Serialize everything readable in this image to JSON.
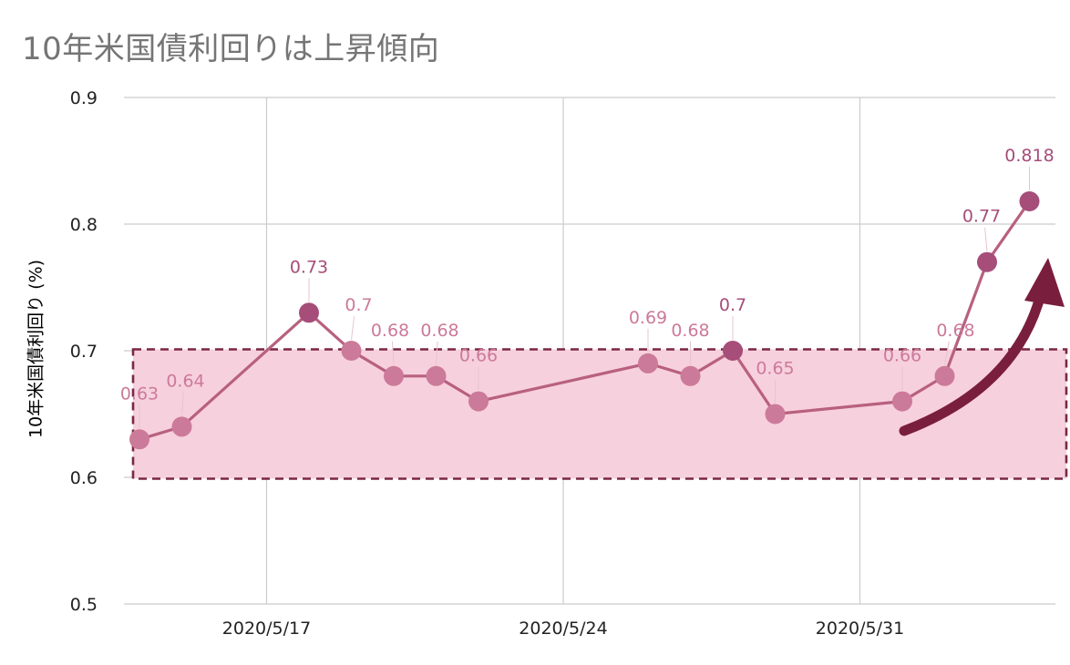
{
  "chart_data": {
    "type": "line",
    "title": "10年米国債利回りは上昇傾向",
    "xlabel": "",
    "ylabel": "10年米国債利回り (%)",
    "ylim": [
      0.5,
      0.9
    ],
    "yticks": [
      "0.5",
      "0.6",
      "0.7",
      "0.8",
      "0.9"
    ],
    "xticks": [
      {
        "label": "2020/5/17",
        "date": "2020-05-17"
      },
      {
        "label": "2020/5/24",
        "date": "2020-05-24"
      },
      {
        "label": "2020/5/31",
        "date": "2020-05-31"
      }
    ],
    "grid": true,
    "legend": "none",
    "series": [
      {
        "points": [
          {
            "date": "2020-05-14",
            "value": 0.63,
            "label": "0.63"
          },
          {
            "date": "2020-05-15",
            "value": 0.64,
            "label": "0.64"
          },
          {
            "date": "2020-05-18",
            "value": 0.73,
            "label": "0.73"
          },
          {
            "date": "2020-05-19",
            "value": 0.7,
            "label": "0.7"
          },
          {
            "date": "2020-05-20",
            "value": 0.68,
            "label": "0.68"
          },
          {
            "date": "2020-05-21",
            "value": 0.68,
            "label": "0.68"
          },
          {
            "date": "2020-05-22",
            "value": 0.66,
            "label": "0.66"
          },
          {
            "date": "2020-05-26",
            "value": 0.69,
            "label": "0.69"
          },
          {
            "date": "2020-05-27",
            "value": 0.68,
            "label": "0.68"
          },
          {
            "date": "2020-05-28",
            "value": 0.7,
            "label": "0.7"
          },
          {
            "date": "2020-05-29",
            "value": 0.65,
            "label": "0.65"
          },
          {
            "date": "2020-06-01",
            "value": 0.66,
            "label": "0.66"
          },
          {
            "date": "2020-06-02",
            "value": 0.68,
            "label": "0.68"
          },
          {
            "date": "2020-06-03",
            "value": 0.77,
            "label": "0.77"
          },
          {
            "date": "2020-06-04",
            "value": 0.818,
            "label": "0.818"
          }
        ]
      }
    ],
    "annotations": {
      "range_band": {
        "from": 0.6,
        "to": 0.7
      },
      "arrow": "upward-trend"
    },
    "colors": {
      "line": "#b8607f",
      "point": "#cc7a9a",
      "point_dark": "#a64d7a",
      "label": "#cc7a9a",
      "label_dark": "#a64d7a",
      "band_fill": "#f7d0dd",
      "band_border": "#7a2745",
      "arrow": "#7a1e3d",
      "grid": "#cccccc",
      "title": "#757575"
    }
  }
}
